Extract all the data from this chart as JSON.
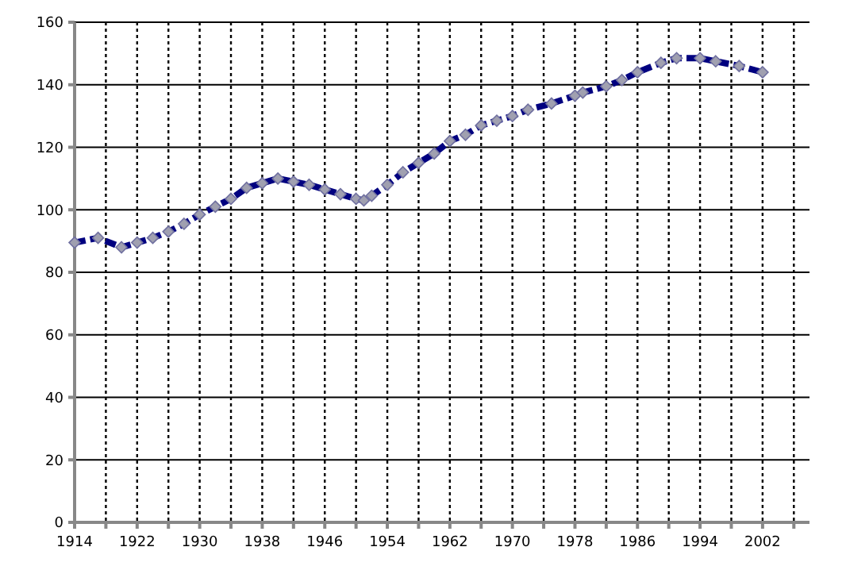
{
  "chart_data": {
    "type": "line",
    "marker": "diamond",
    "line_style": "dashed",
    "grid": true,
    "xlim": [
      1914,
      2008
    ],
    "ylim": [
      0,
      160
    ],
    "yticks": [
      0,
      20,
      40,
      60,
      80,
      100,
      120,
      140,
      160
    ],
    "xticks": [
      1914,
      {
        "value": 1918,
        "label": null
      },
      1922,
      {
        "value": 1926,
        "label": null
      },
      1930,
      {
        "value": 1934,
        "label": null
      },
      1938,
      {
        "value": 1942,
        "label": null
      },
      1946,
      {
        "value": 1950,
        "label": null
      },
      1954,
      {
        "value": 1958,
        "label": null
      },
      1962,
      {
        "value": 1966,
        "label": null
      },
      1970,
      {
        "value": 1974,
        "label": null
      },
      1978,
      {
        "value": 1982,
        "label": null
      },
      1986,
      {
        "value": 1990,
        "label": null
      },
      1994,
      {
        "value": 1998,
        "label": null
      },
      2002,
      {
        "value": 2006,
        "label": null
      }
    ],
    "series": [
      {
        "color": "#000080",
        "x": [
          1914,
          1917,
          1920,
          1922,
          1924,
          1926,
          1928,
          1930,
          1932,
          1934,
          1936,
          1938,
          1940,
          1942,
          1944,
          1946,
          1948,
          1950,
          1951,
          1952,
          1954,
          1956,
          1958,
          1960,
          1962,
          1964,
          1966,
          1968,
          1970,
          1972,
          1975,
          1978,
          1979,
          1982,
          1984,
          1986,
          1989,
          1991,
          1994,
          1996,
          1999,
          2002
        ],
        "values": [
          89.5,
          91,
          88,
          89.5,
          91,
          93,
          95.5,
          98.5,
          101,
          103.5,
          107,
          108.5,
          110,
          109,
          108,
          106.5,
          105,
          103.5,
          103,
          104.5,
          108,
          112,
          115,
          118,
          122,
          124,
          127,
          128.5,
          130,
          132,
          134,
          136.5,
          137.5,
          139.5,
          141.5,
          144,
          147,
          148.5,
          148.5,
          147.5,
          146,
          144
        ]
      }
    ]
  }
}
